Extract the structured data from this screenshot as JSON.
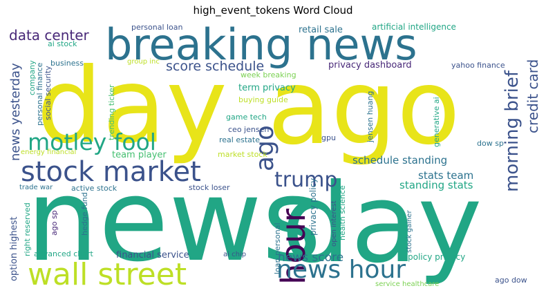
{
  "chart_data": {
    "type": "wordcloud",
    "title": "high_event_tokens Word Cloud",
    "words": [
      {
        "text": "news",
        "weight": 100,
        "color": "#21a685"
      },
      {
        "text": "day",
        "weight": 96,
        "color": "#21a685"
      },
      {
        "text": "ago",
        "weight": 92,
        "color": "#e8e419"
      },
      {
        "text": "day",
        "weight": 92,
        "color": "#e8e419"
      },
      {
        "text": "breaking news",
        "weight": 52,
        "color": "#2c728e"
      },
      {
        "text": "stock market",
        "weight": 40,
        "color": "#3b528b"
      },
      {
        "text": "wall street",
        "weight": 40,
        "color": "#bddf26"
      },
      {
        "text": "hour",
        "weight": 40,
        "color": "#440154"
      },
      {
        "text": "news hour",
        "weight": 36,
        "color": "#2c728e"
      },
      {
        "text": "ago",
        "weight": 32,
        "color": "#3b528b"
      },
      {
        "text": "motley fool",
        "weight": 32,
        "color": "#21a685"
      },
      {
        "text": "trump",
        "weight": 30,
        "color": "#3b528b"
      },
      {
        "text": "morning brief",
        "weight": 26,
        "color": "#3b528b"
      },
      {
        "text": "data center",
        "weight": 20,
        "color": "#482878"
      },
      {
        "text": "credit card",
        "weight": 20,
        "color": "#3b528b"
      },
      {
        "text": "score schedule",
        "weight": 18,
        "color": "#3b528b"
      },
      {
        "text": "news yesterday",
        "weight": 18,
        "color": "#3b528b"
      },
      {
        "text": "news score",
        "weight": 16,
        "color": "#2c728e"
      },
      {
        "text": "schedule standing",
        "weight": 14,
        "color": "#2c728e"
      },
      {
        "text": "stats team",
        "weight": 14,
        "color": "#2c728e"
      },
      {
        "text": "standing stats",
        "weight": 14,
        "color": "#21a685"
      },
      {
        "text": "privacy dashboard",
        "weight": 13,
        "color": "#482878"
      },
      {
        "text": "term privacy",
        "weight": 13,
        "color": "#21a685"
      },
      {
        "text": "retail sale",
        "weight": 13,
        "color": "#2c728e"
      },
      {
        "text": "option highest",
        "weight": 13,
        "color": "#3b528b"
      },
      {
        "text": "financial service",
        "weight": 13,
        "color": "#3b528b"
      },
      {
        "text": "team player",
        "weight": 13,
        "color": "#44bf70"
      },
      {
        "text": "artificial intelligence",
        "weight": 12,
        "color": "#21a685"
      },
      {
        "text": "privacy policy",
        "weight": 12,
        "color": "#2c728e"
      },
      {
        "text": "policy privacy",
        "weight": 12,
        "color": "#21a685"
      },
      {
        "text": "personal loan",
        "weight": 11,
        "color": "#3b528b"
      },
      {
        "text": "ai stock",
        "weight": 11,
        "color": "#21a685"
      },
      {
        "text": "business",
        "weight": 11,
        "color": "#2c728e"
      },
      {
        "text": "personal finance",
        "weight": 11,
        "color": "#2c728e"
      },
      {
        "text": "company",
        "weight": 11,
        "color": "#21a685"
      },
      {
        "text": "social security",
        "weight": 11,
        "color": "#3b528b"
      },
      {
        "text": "trending ticker",
        "weight": 11,
        "color": "#44bf70"
      },
      {
        "text": "week breaking",
        "weight": 11,
        "color": "#7ad151"
      },
      {
        "text": "buying guide",
        "weight": 11,
        "color": "#bddf26"
      },
      {
        "text": "game tech",
        "weight": 11,
        "color": "#21a685"
      },
      {
        "text": "ceo jensen",
        "weight": 11,
        "color": "#3b528b"
      },
      {
        "text": "real estate",
        "weight": 11,
        "color": "#2c728e"
      },
      {
        "text": "gpu",
        "weight": 11,
        "color": "#3b528b"
      },
      {
        "text": "jensen huang",
        "weight": 11,
        "color": "#2c728e"
      },
      {
        "text": "generative ai",
        "weight": 11,
        "color": "#21a685"
      },
      {
        "text": "dow sp",
        "weight": 11,
        "color": "#2c728e"
      },
      {
        "text": "yahoo finance",
        "weight": 11,
        "color": "#3b528b"
      },
      {
        "text": "health science",
        "weight": 11,
        "color": "#21a685"
      },
      {
        "text": "group inc",
        "weight": 10,
        "color": "#bddf26"
      },
      {
        "text": "energy financial",
        "weight": 10,
        "color": "#bddf26"
      },
      {
        "text": "market stock",
        "weight": 11,
        "color": "#bddf26"
      },
      {
        "text": "trade war",
        "weight": 10,
        "color": "#2c728e"
      },
      {
        "text": "active stock",
        "weight": 11,
        "color": "#2c728e"
      },
      {
        "text": "stock loser",
        "weight": 11,
        "color": "#3b528b"
      },
      {
        "text": "ago sp",
        "weight": 11,
        "color": "#482878"
      },
      {
        "text": "right reserved",
        "weight": 11,
        "color": "#21a685"
      },
      {
        "text": "hedge fund",
        "weight": 11,
        "color": "#2c728e"
      },
      {
        "text": "advanced chart",
        "weight": 11,
        "color": "#21a685"
      },
      {
        "text": "ai chip",
        "weight": 10,
        "color": "#3b528b"
      },
      {
        "text": "loan personal",
        "weight": 11,
        "color": "#2c728e"
      },
      {
        "text": "open interest",
        "weight": 10,
        "color": "#3b528b"
      },
      {
        "text": "stock gainer",
        "weight": 10,
        "color": "#2c728e"
      },
      {
        "text": "service healthcare",
        "weight": 10,
        "color": "#7ad151"
      },
      {
        "text": "ago dow",
        "weight": 11,
        "color": "#3b528b"
      }
    ]
  }
}
